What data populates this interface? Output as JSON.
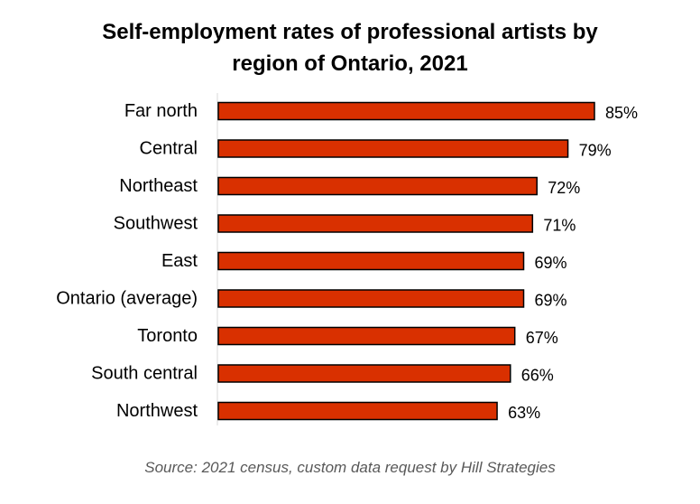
{
  "chart_data": {
    "type": "bar",
    "orientation": "horizontal",
    "title_lines": [
      "Self-employment rates of professional artists by",
      "region of Ontario, 2021"
    ],
    "categories": [
      "Far north",
      "Central",
      "Northeast",
      "Southwest",
      "East",
      "Ontario (average)",
      "Toronto",
      "South central",
      "Northwest"
    ],
    "values": [
      85,
      79,
      72,
      71,
      69,
      69,
      67,
      66,
      63
    ],
    "data_labels": [
      "85%",
      "79%",
      "72%",
      "71%",
      "69%",
      "69%",
      "67%",
      "66%",
      "63%"
    ],
    "xlim": [
      0,
      85
    ],
    "unit": "%",
    "grid": false,
    "bar_color": "#d93000",
    "bar_edge_color": "#000000"
  },
  "source": "Source: 2021 census, custom data request by Hill Strategies"
}
